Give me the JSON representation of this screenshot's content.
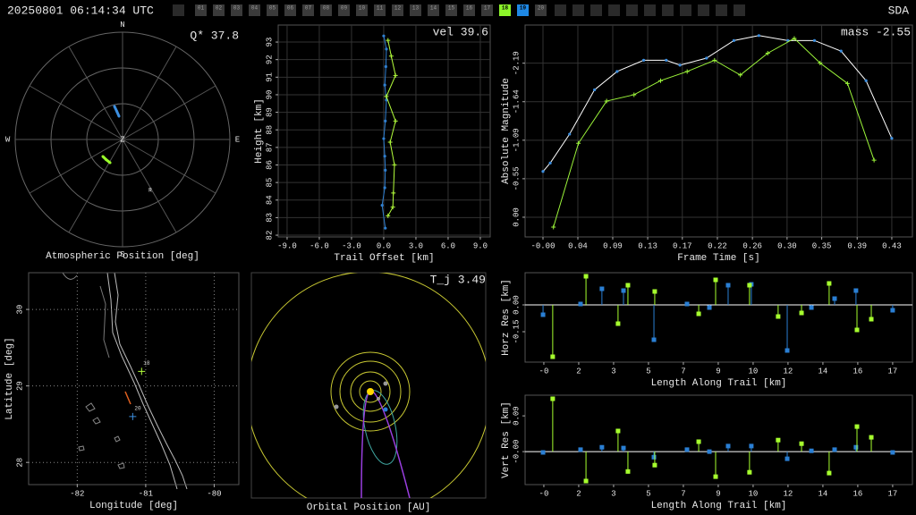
{
  "header": {
    "timestamp": "20250801 06:14:34 UTC",
    "station": "SDA",
    "frame_color": "#3a3a3a",
    "frames": [
      {
        "label": "01"
      },
      {
        "label": "02"
      },
      {
        "label": "03"
      },
      {
        "label": "04"
      },
      {
        "label": "05"
      },
      {
        "label": "06"
      },
      {
        "label": "07"
      },
      {
        "label": "08"
      },
      {
        "label": "09"
      },
      {
        "label": "10"
      },
      {
        "label": "11"
      },
      {
        "label": "12"
      },
      {
        "label": "13"
      },
      {
        "label": "14"
      },
      {
        "label": "15"
      },
      {
        "label": "16"
      },
      {
        "label": "17"
      },
      {
        "label": "18",
        "color": "#8cf52a"
      },
      {
        "label": "19",
        "color": "#1e88e5"
      },
      {
        "label": "20"
      }
    ]
  },
  "chart_data": [
    {
      "type": "polar",
      "title": "Atmospheric Position [deg]",
      "annotation": "Q* 37.8",
      "directions": [
        "N",
        "E",
        "S",
        "W"
      ],
      "zenith_label": "Z",
      "radiant": {
        "label": "R",
        "azimuth": 151.5,
        "zenith": 48.6
      },
      "rlim": [
        0,
        90
      ],
      "rticks": [
        30,
        60,
        90
      ],
      "series": [
        {
          "color": "#3d8fe0",
          "azimuth": [
            346.3,
            348.5,
            351.3
          ],
          "zenith": [
            28.6,
            24.0,
            19.7
          ]
        },
        {
          "color": "#9aff2a",
          "azimuth": [
            229.2,
            219.0,
            208.3
          ],
          "zenith": [
            21.8,
            21.8,
            22.1
          ]
        }
      ]
    },
    {
      "type": "line",
      "annotation": "vel 39.6",
      "x_label": "Trail Offset [km]",
      "y_label": "Height [km]",
      "xlim": [
        -9.83,
        9.92
      ],
      "ylim": [
        81.9,
        93.97
      ],
      "grid": true,
      "xticks": [
        {
          "value": -9,
          "label": "-9.0"
        },
        {
          "value": -6,
          "label": "-6.0"
        },
        {
          "value": -3,
          "label": "-3.0"
        },
        {
          "value": 0,
          "label": "0.0"
        },
        {
          "value": 3,
          "label": "3.0"
        },
        {
          "value": 6,
          "label": "6.0"
        },
        {
          "value": 9,
          "label": "9.0"
        }
      ],
      "yticks": [
        82,
        83,
        84,
        85,
        86,
        87,
        88,
        89,
        90,
        91,
        92,
        93
      ],
      "series": [
        {
          "color": "#2f7fd0",
          "marker": "dot",
          "x": [
            0,
            0.25,
            0.2,
            0.1,
            0.25,
            0.15,
            0,
            0.1,
            0.15,
            0.1,
            -0.15,
            0.15
          ],
          "values": [
            93.35,
            92.6,
            91.6,
            90.55,
            89.7,
            88.5,
            87.5,
            86.5,
            85.7,
            84.7,
            83.7,
            82.4
          ]
        },
        {
          "color": "#b4ff3c",
          "marker": "plus",
          "x": [
            0.4,
            0.7,
            1.1,
            0.25,
            1.1,
            0.6,
            1.0,
            0.9,
            0.85,
            0.4
          ],
          "values": [
            93.1,
            92.2,
            91.1,
            89.9,
            88.5,
            87.3,
            86.0,
            84.4,
            83.6,
            83.1
          ]
        }
      ]
    },
    {
      "type": "line",
      "annotation": "mass -2.55",
      "x_label": "Frame Time [s]",
      "y_label": "Absolute Magnitude",
      "xlim": [
        -0.0222,
        0.4586
      ],
      "ylim": [
        0.28,
        -2.73
      ],
      "grid": true,
      "xticks": [
        {
          "value": 0,
          "label": "-0.00"
        },
        {
          "value": 0.0433,
          "label": "0.04"
        },
        {
          "value": 0.0866,
          "label": "0.09"
        },
        {
          "value": 0.13,
          "label": "0.13"
        },
        {
          "value": 0.173,
          "label": "0.17"
        },
        {
          "value": 0.2165,
          "label": "0.22"
        },
        {
          "value": 0.26,
          "label": "0.26"
        },
        {
          "value": 0.303,
          "label": "0.30"
        },
        {
          "value": 0.346,
          "label": "0.35"
        },
        {
          "value": 0.39,
          "label": "0.39"
        },
        {
          "value": 0.433,
          "label": "0.43"
        }
      ],
      "yticks": [
        {
          "value": 0,
          "label": "0.00"
        },
        {
          "value": -0.547,
          "label": "-0.55"
        },
        {
          "value": -1.094,
          "label": "-1.09"
        },
        {
          "value": -1.641,
          "label": "-1.64"
        },
        {
          "value": -2.188,
          "label": "-2.19"
        }
      ],
      "series": [
        {
          "color": "#ffffff",
          "marker": "dot",
          "marker_color": "#3d8fe0",
          "x": [
            0,
            0.009,
            0.033,
            0.064,
            0.092,
            0.125,
            0.153,
            0.17,
            0.203,
            0.237,
            0.268,
            0.304,
            0.337,
            0.37,
            0.401,
            0.433
          ],
          "values": [
            -0.65,
            -0.77,
            -1.18,
            -1.81,
            -2.07,
            -2.23,
            -2.23,
            -2.16,
            -2.26,
            -2.51,
            -2.58,
            -2.51,
            -2.51,
            -2.36,
            -1.94,
            -1.12
          ]
        },
        {
          "color": "#9cf53a",
          "marker": "plus",
          "x": [
            0.013,
            0.044,
            0.079,
            0.113,
            0.146,
            0.179,
            0.213,
            0.245,
            0.279,
            0.312,
            0.344,
            0.378,
            0.411
          ],
          "values": [
            0.14,
            -1.05,
            -1.65,
            -1.74,
            -1.94,
            -2.07,
            -2.23,
            -2.02,
            -2.33,
            -2.54,
            -2.19,
            -1.9,
            -0.81
          ]
        }
      ]
    },
    {
      "type": "map",
      "x_label": "Longitude [deg]",
      "y_label": "Latitude [deg]",
      "xlim": [
        -82.71,
        -79.64
      ],
      "ylim": [
        27.71,
        30.48
      ],
      "grid": true,
      "grid_style": "dotted",
      "xticks": [
        -82,
        -81,
        -80
      ],
      "yticks": [
        28,
        29,
        30
      ],
      "series": [
        {
          "color": "#b4ff3c",
          "x": [
            -81.06
          ],
          "values": [
            29.19
          ],
          "labels": [
            "18"
          ]
        },
        {
          "color": "#3d8fe0",
          "x": [
            -81.19
          ],
          "values": [
            28.6
          ],
          "labels": [
            "20"
          ]
        }
      ]
    },
    {
      "type": "orbit",
      "title": "Orbital Position [AU]",
      "annotation": "T_j 3.49"
    },
    {
      "type": "stem",
      "x_label": "Length Along Trail [km]",
      "y_label": "Horz Res [km]",
      "zero_line": true,
      "xlim": [
        -0.93,
        18.28
      ],
      "ylim": [
        -0.32,
        0.18
      ],
      "xticks": [
        {
          "value": 0,
          "label": "-0"
        },
        {
          "value": 1.73,
          "label": "2"
        },
        {
          "value": 3.46,
          "label": "3"
        },
        {
          "value": 5.19,
          "label": "5"
        },
        {
          "value": 6.92,
          "label": "7"
        },
        {
          "value": 8.65,
          "label": "9"
        },
        {
          "value": 10.38,
          "label": "10"
        },
        {
          "value": 12.11,
          "label": "12"
        },
        {
          "value": 13.84,
          "label": "14"
        },
        {
          "value": 15.57,
          "label": "16"
        },
        {
          "value": 17.3,
          "label": "17"
        }
      ],
      "yticks": [
        -0.15,
        {
          "value": 0,
          "label": "0.00"
        }
      ],
      "series": [
        {
          "color": "#2a7fd4",
          "x": [
            -0.04,
            1.82,
            2.88,
            3.95,
            5.46,
            7.1,
            8.21,
            9.14,
            10.29,
            12.07,
            13.27,
            14.42,
            15.48,
            17.3
          ],
          "values": [
            -0.055,
            0.005,
            0.09,
            0.08,
            -0.195,
            0.005,
            -0.015,
            0.11,
            0.115,
            -0.255,
            -0.015,
            0.035,
            0.08,
            -0.03
          ]
        },
        {
          "color": "#a6ff2e",
          "x": [
            0.44,
            2.09,
            3.68,
            4.17,
            5.5,
            7.68,
            8.52,
            10.2,
            11.62,
            12.78,
            14.15,
            15.53,
            16.24
          ],
          "values": [
            -0.29,
            0.16,
            -0.105,
            0.11,
            0.075,
            -0.05,
            0.14,
            0.11,
            -0.065,
            -0.045,
            0.12,
            -0.14,
            -0.08
          ]
        }
      ]
    },
    {
      "type": "stem",
      "x_label": "Length Along Trail [km]",
      "y_label": "Vert Res [km]",
      "zero_line": true,
      "xlim": [
        -0.93,
        18.28
      ],
      "ylim": [
        -0.083,
        0.142
      ],
      "xticks": [
        {
          "value": 0,
          "label": "-0"
        },
        {
          "value": 1.73,
          "label": "2"
        },
        {
          "value": 3.46,
          "label": "3"
        },
        {
          "value": 5.19,
          "label": "5"
        },
        {
          "value": 6.92,
          "label": "7"
        },
        {
          "value": 8.65,
          "label": "9"
        },
        {
          "value": 10.38,
          "label": "10"
        },
        {
          "value": 12.11,
          "label": "12"
        },
        {
          "value": 13.84,
          "label": "14"
        },
        {
          "value": 15.57,
          "label": "16"
        },
        {
          "value": 17.3,
          "label": "17"
        }
      ],
      "yticks": [
        {
          "value": 0,
          "label": "-0.00"
        },
        0.09
      ],
      "series": [
        {
          "color": "#2a7fd4",
          "x": [
            -0.04,
            1.82,
            2.88,
            3.95,
            5.46,
            7.1,
            8.21,
            9.14,
            10.29,
            12.07,
            13.27,
            14.42,
            15.48,
            17.3
          ],
          "values": [
            -0.002,
            0.005,
            0.011,
            0.009,
            -0.014,
            0.005,
            0,
            0.014,
            0.014,
            -0.018,
            0.002,
            0.005,
            0.011,
            -0.002
          ]
        },
        {
          "color": "#a6ff2e",
          "x": [
            0.44,
            2.09,
            3.68,
            4.17,
            5.5,
            7.68,
            8.52,
            10.2,
            11.62,
            12.78,
            14.15,
            15.53,
            16.24
          ],
          "values": [
            0.133,
            -0.074,
            0.052,
            -0.05,
            -0.034,
            0.025,
            -0.063,
            -0.052,
            0.029,
            0.02,
            -0.054,
            0.063,
            0.036
          ]
        }
      ]
    }
  ]
}
